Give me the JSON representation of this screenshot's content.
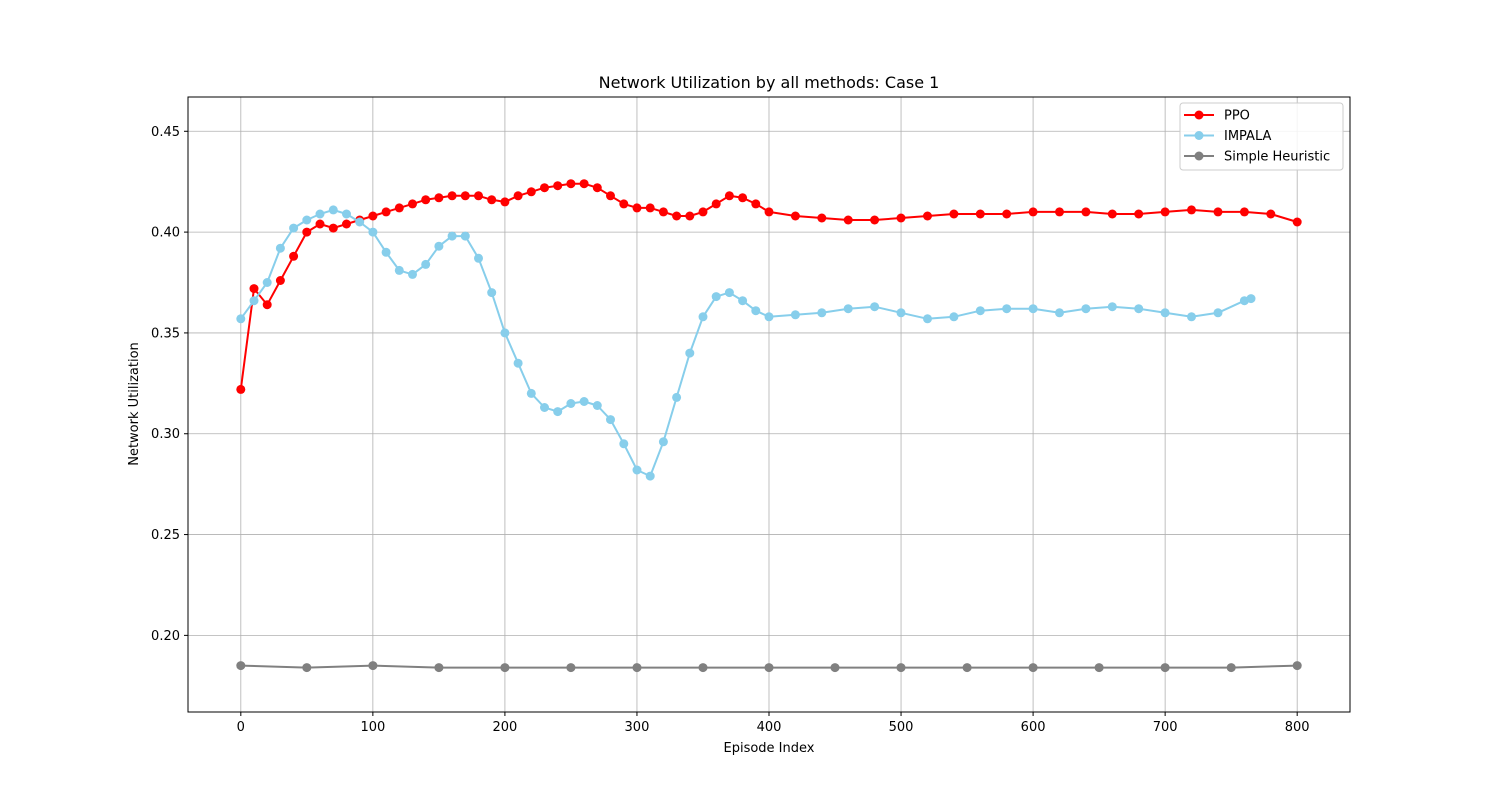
{
  "chart_data": {
    "type": "line",
    "title": "Network Utilization by all methods: Case 1",
    "xlabel": "Episode Index",
    "ylabel": "Network Utilization",
    "xlim": [
      -40,
      840
    ],
    "ylim": [
      0.162,
      0.467
    ],
    "xticks": [
      "0",
      "100",
      "200",
      "300",
      "400",
      "500",
      "600",
      "700",
      "800"
    ],
    "yticks": [
      "0.20",
      "0.25",
      "0.30",
      "0.35",
      "0.40",
      "0.45"
    ],
    "grid": true,
    "legend_position": "upper right",
    "marker": "circle",
    "series": [
      {
        "name": "PPO",
        "color": "#ff0000",
        "x": [
          0,
          10,
          20,
          30,
          40,
          50,
          60,
          70,
          80,
          90,
          100,
          110,
          120,
          130,
          140,
          150,
          160,
          170,
          180,
          190,
          200,
          210,
          220,
          230,
          240,
          250,
          260,
          270,
          280,
          290,
          300,
          310,
          320,
          330,
          340,
          350,
          360,
          370,
          380,
          390,
          400,
          420,
          440,
          460,
          480,
          500,
          520,
          540,
          560,
          580,
          600,
          620,
          640,
          660,
          680,
          700,
          720,
          740,
          760,
          780,
          800
        ],
        "values": [
          0.322,
          0.372,
          0.364,
          0.376,
          0.388,
          0.4,
          0.404,
          0.402,
          0.404,
          0.406,
          0.408,
          0.41,
          0.412,
          0.414,
          0.416,
          0.417,
          0.418,
          0.418,
          0.418,
          0.416,
          0.415,
          0.418,
          0.42,
          0.422,
          0.423,
          0.424,
          0.424,
          0.422,
          0.418,
          0.414,
          0.412,
          0.412,
          0.41,
          0.408,
          0.408,
          0.41,
          0.414,
          0.418,
          0.417,
          0.414,
          0.41,
          0.408,
          0.407,
          0.406,
          0.406,
          0.407,
          0.408,
          0.409,
          0.409,
          0.409,
          0.41,
          0.41,
          0.41,
          0.409,
          0.409,
          0.41,
          0.411,
          0.41,
          0.41,
          0.409,
          0.405
        ]
      },
      {
        "name": "IMPALA",
        "color": "#87ceeb",
        "x": [
          0,
          10,
          20,
          30,
          40,
          50,
          60,
          70,
          80,
          90,
          100,
          110,
          120,
          130,
          140,
          150,
          160,
          170,
          180,
          190,
          200,
          210,
          220,
          230,
          240,
          250,
          260,
          270,
          280,
          290,
          300,
          310,
          320,
          330,
          340,
          350,
          360,
          370,
          380,
          390,
          400,
          420,
          440,
          460,
          480,
          500,
          520,
          540,
          560,
          580,
          600,
          620,
          640,
          660,
          680,
          700,
          720,
          740,
          760,
          765
        ],
        "values": [
          0.357,
          0.366,
          0.375,
          0.392,
          0.402,
          0.406,
          0.409,
          0.411,
          0.409,
          0.405,
          0.4,
          0.39,
          0.381,
          0.379,
          0.384,
          0.393,
          0.398,
          0.398,
          0.387,
          0.37,
          0.35,
          0.335,
          0.32,
          0.313,
          0.311,
          0.315,
          0.316,
          0.314,
          0.307,
          0.295,
          0.282,
          0.279,
          0.296,
          0.318,
          0.34,
          0.358,
          0.368,
          0.37,
          0.366,
          0.361,
          0.358,
          0.359,
          0.36,
          0.362,
          0.363,
          0.36,
          0.357,
          0.358,
          0.361,
          0.362,
          0.362,
          0.36,
          0.362,
          0.363,
          0.362,
          0.36,
          0.358,
          0.36,
          0.366,
          0.367
        ]
      },
      {
        "name": "Simple Heuristic",
        "color": "#808080",
        "x": [
          0,
          50,
          100,
          150,
          200,
          250,
          300,
          350,
          400,
          450,
          500,
          550,
          600,
          650,
          700,
          750,
          800
        ],
        "values": [
          0.185,
          0.184,
          0.185,
          0.184,
          0.184,
          0.184,
          0.184,
          0.184,
          0.184,
          0.184,
          0.184,
          0.184,
          0.184,
          0.184,
          0.184,
          0.184,
          0.185
        ]
      }
    ]
  }
}
